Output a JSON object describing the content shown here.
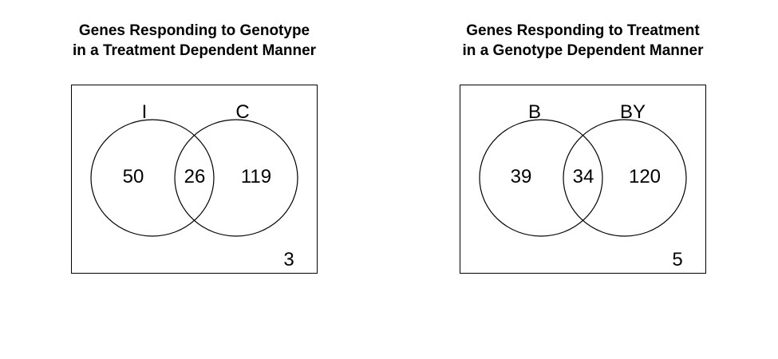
{
  "diagrams": [
    {
      "title_line1": "Genes Responding to Genotype",
      "title_line2": "in a Treatment Dependent Manner",
      "set_a_label": "I",
      "set_b_label": "C",
      "only_a": "50",
      "both": "26",
      "only_b": "119",
      "outside": "3"
    },
    {
      "title_line1": "Genes Responding to Treatment",
      "title_line2": "in a Genotype Dependent Manner",
      "set_a_label": "B",
      "set_b_label": "BY",
      "only_a": "39",
      "both": "34",
      "only_b": "120",
      "outside": "5"
    }
  ]
}
